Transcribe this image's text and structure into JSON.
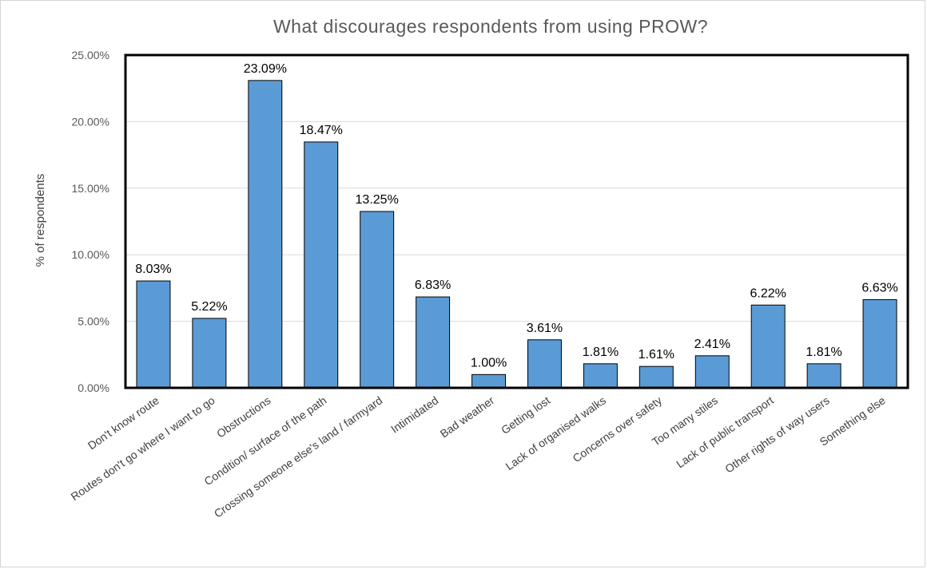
{
  "chart_data": {
    "type": "bar",
    "title": "What discourages respondents from using PROW?",
    "ylabel": "% of respondents",
    "xlabel": "",
    "ylim": [
      0,
      25
    ],
    "yticks": [
      "0.00%",
      "5.00%",
      "10.00%",
      "15.00%",
      "20.00%",
      "25.00%"
    ],
    "grid": true,
    "categories": [
      "Don't know route",
      "Routes don't go where I want to go",
      "Obstructions",
      "Condition/ surface of the path",
      "Crossing someone else's land / farmyard",
      "Intimidated",
      "Bad weather",
      "Getting lost",
      "Lack of organised walks",
      "Concerns over safety",
      "Too many stiles",
      "Lack of public transport",
      "Other rights of way users",
      "Something else"
    ],
    "values": [
      8.03,
      5.22,
      23.09,
      18.47,
      13.25,
      6.83,
      1.0,
      3.61,
      1.81,
      1.61,
      2.41,
      6.22,
      1.81,
      6.63
    ],
    "data_labels": [
      "8.03%",
      "5.22%",
      "23.09%",
      "18.47%",
      "13.25%",
      "6.83%",
      "1.00%",
      "3.61%",
      "1.81%",
      "1.61%",
      "2.41%",
      "6.22%",
      "1.81%",
      "6.63%"
    ],
    "bar_color": "#5b9bd5",
    "bar_edge_color": "#000000"
  }
}
